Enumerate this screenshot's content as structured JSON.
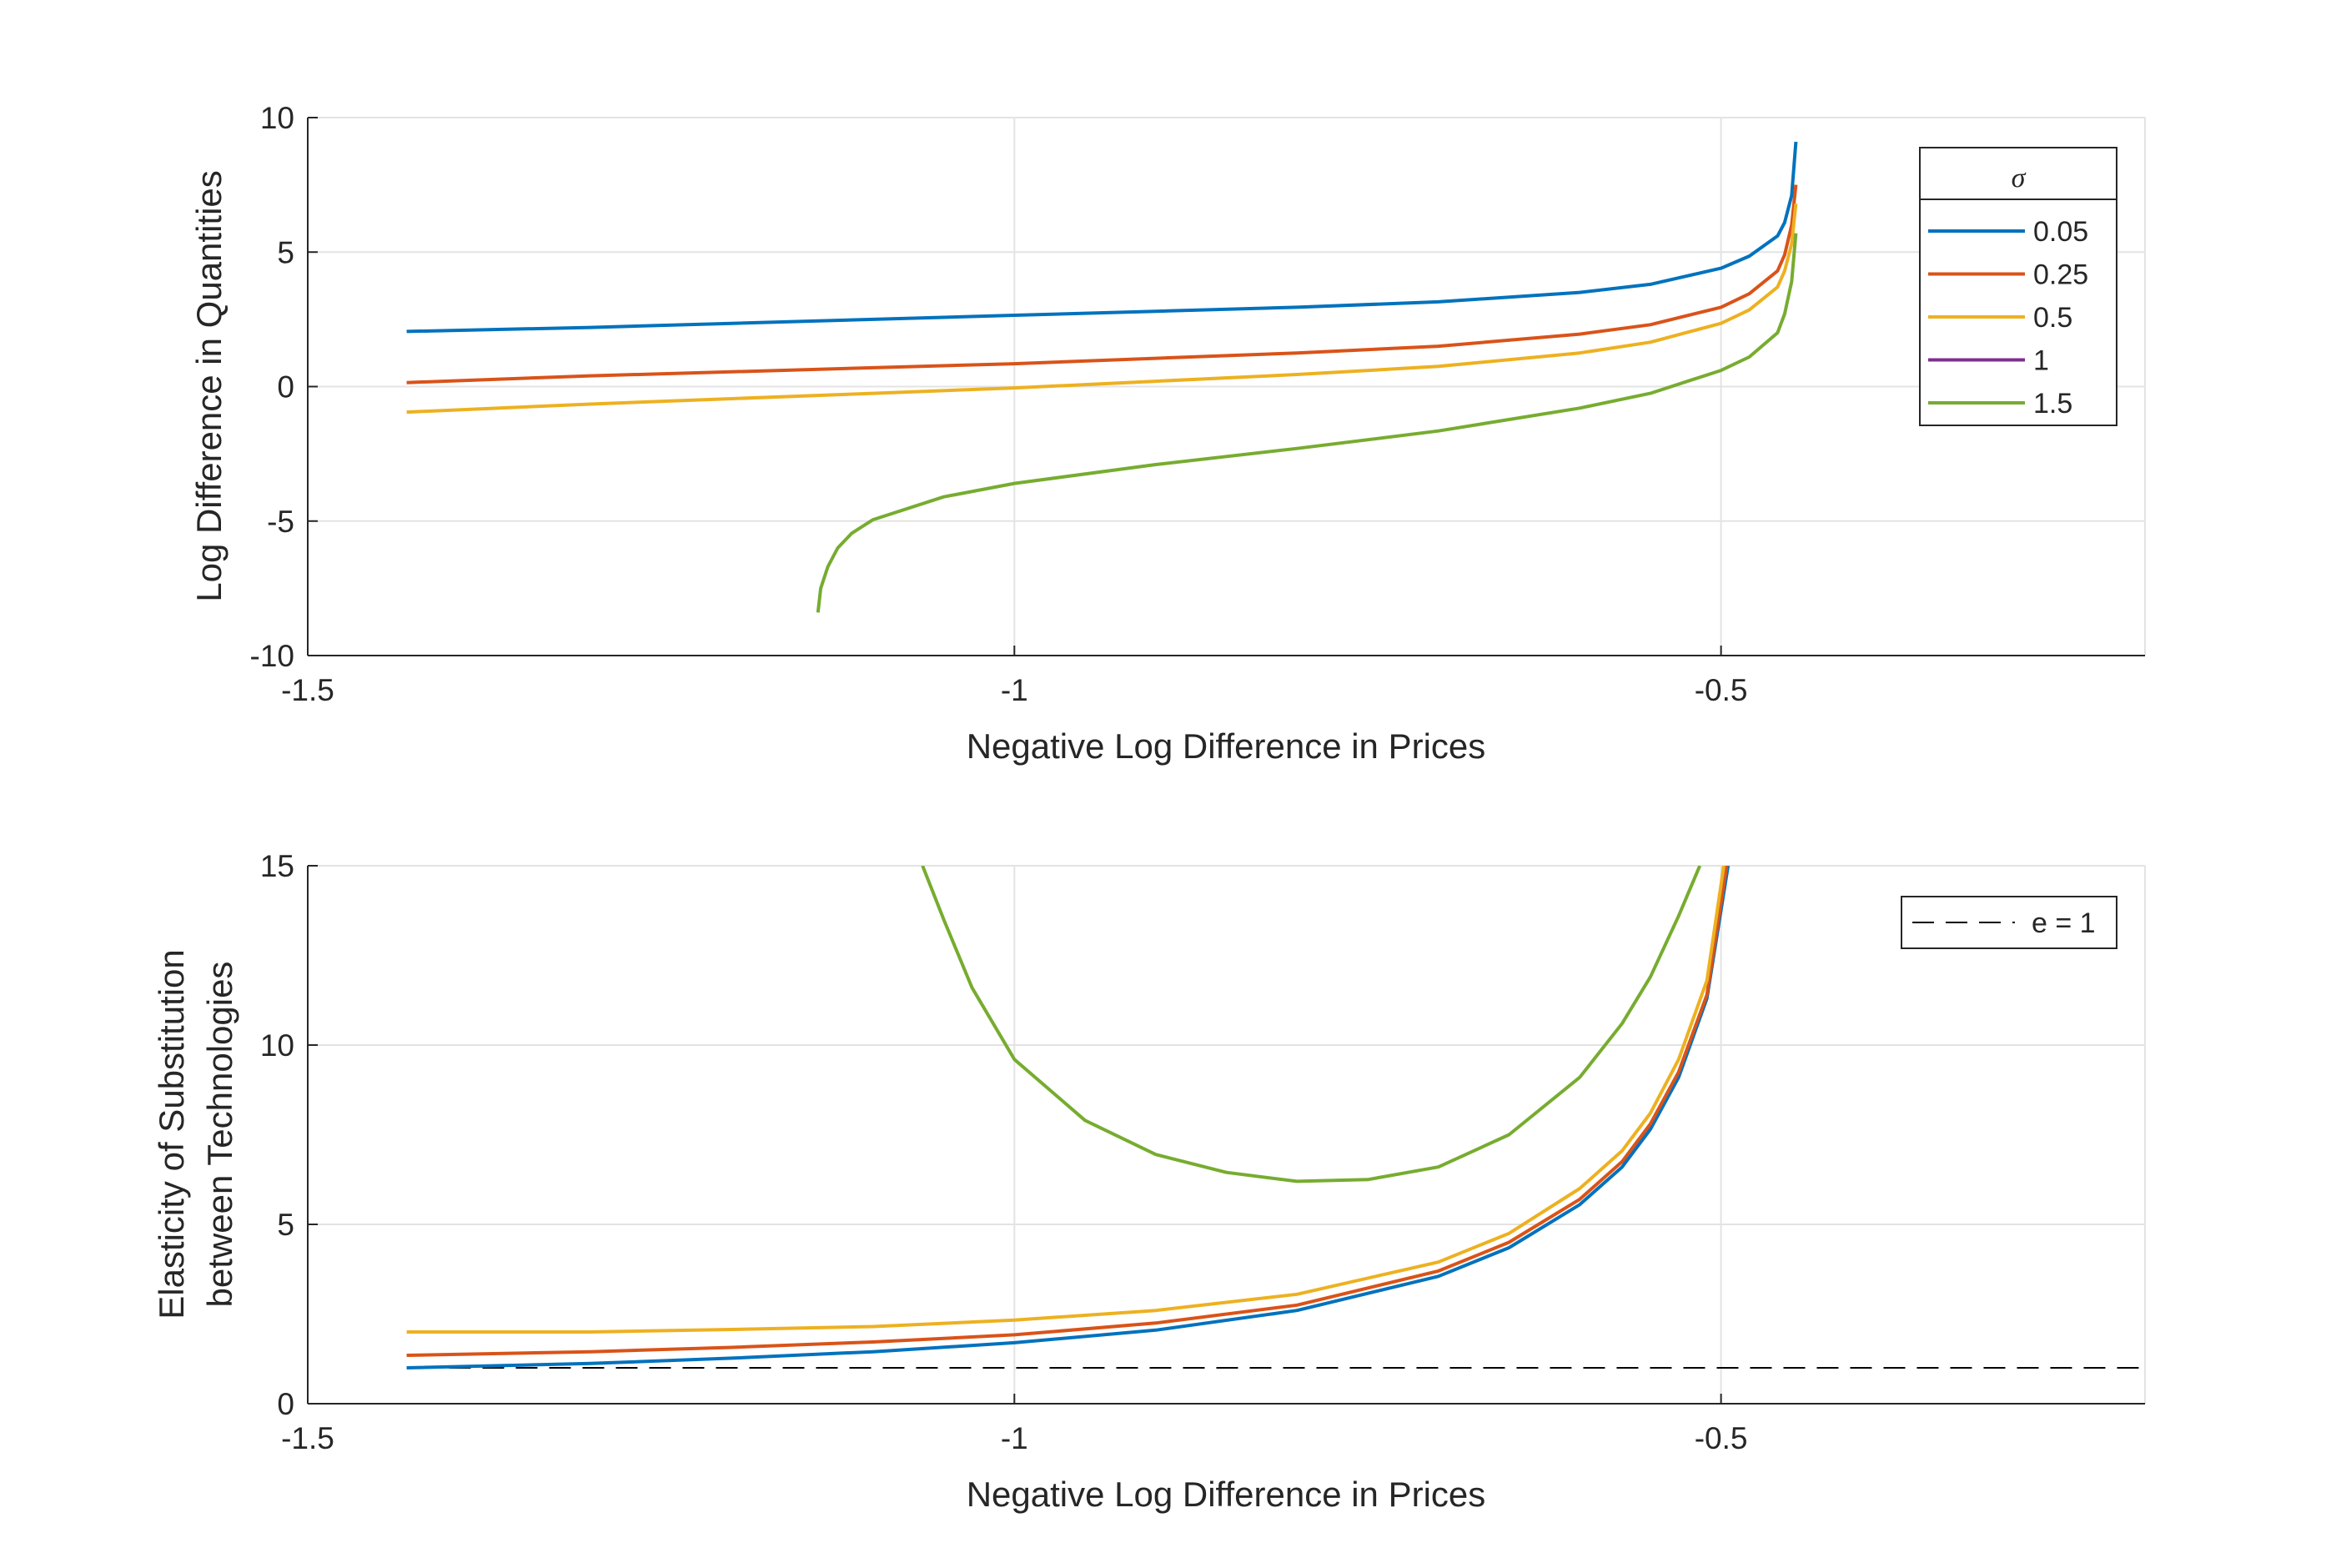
{
  "chart_data": [
    {
      "type": "line",
      "xlabel": "Negative Log Difference in Prices",
      "ylabel": "Log Difference in Quantities",
      "xlim": [
        -1.5,
        -0.2
      ],
      "ylim": [
        -10,
        10
      ],
      "xticks": [
        -1.5,
        -1,
        -0.5
      ],
      "xtick_labels": [
        "-1.5",
        "-1",
        "-0.5"
      ],
      "yticks": [
        -10,
        -5,
        0,
        5,
        10
      ],
      "ytick_labels": [
        "-10",
        "-5",
        "0",
        "5",
        "10"
      ],
      "grid": true,
      "legend": {
        "title": "σ",
        "position": "top-right"
      },
      "series": [
        {
          "name": "0.05",
          "color": "#0072BD",
          "x": [
            -1.43,
            -1.3,
            -1.2,
            -1.1,
            -1.0,
            -0.9,
            -0.8,
            -0.7,
            -0.6,
            -0.55,
            -0.5,
            -0.48,
            -0.46,
            -0.455,
            -0.45,
            -0.447
          ],
          "y": [
            2.05,
            2.2,
            2.35,
            2.5,
            2.65,
            2.8,
            2.95,
            3.15,
            3.5,
            3.8,
            4.4,
            4.85,
            5.6,
            6.1,
            7.1,
            9.1
          ]
        },
        {
          "name": "0.25",
          "color": "#D95319",
          "x": [
            -1.43,
            -1.3,
            -1.2,
            -1.1,
            -1.0,
            -0.9,
            -0.8,
            -0.7,
            -0.6,
            -0.55,
            -0.5,
            -0.48,
            -0.46,
            -0.455,
            -0.45,
            -0.447
          ],
          "y": [
            0.15,
            0.4,
            0.55,
            0.7,
            0.85,
            1.05,
            1.25,
            1.5,
            1.95,
            2.3,
            2.95,
            3.45,
            4.3,
            4.9,
            6.0,
            7.5
          ]
        },
        {
          "name": "0.5",
          "color": "#EDB120",
          "x": [
            -1.43,
            -1.3,
            -1.2,
            -1.1,
            -1.0,
            -0.9,
            -0.8,
            -0.7,
            -0.6,
            -0.55,
            -0.5,
            -0.48,
            -0.46,
            -0.455,
            -0.45,
            -0.447
          ],
          "y": [
            -0.95,
            -0.65,
            -0.45,
            -0.25,
            -0.05,
            0.2,
            0.45,
            0.75,
            1.25,
            1.65,
            2.35,
            2.85,
            3.7,
            4.3,
            5.3,
            6.8
          ]
        },
        {
          "name": "1",
          "color": "#7E2F8E",
          "x": [],
          "y": []
        },
        {
          "name": "1.5",
          "color": "#77AC30",
          "x": [
            -1.139,
            -1.137,
            -1.132,
            -1.125,
            -1.115,
            -1.1,
            -1.05,
            -1.0,
            -0.9,
            -0.8,
            -0.7,
            -0.6,
            -0.55,
            -0.5,
            -0.48,
            -0.46,
            -0.455,
            -0.45,
            -0.447
          ],
          "y": [
            -8.4,
            -7.5,
            -6.7,
            -6.0,
            -5.45,
            -4.95,
            -4.1,
            -3.6,
            -2.9,
            -2.3,
            -1.65,
            -0.8,
            -0.25,
            0.6,
            1.1,
            2.0,
            2.7,
            3.9,
            5.7
          ]
        }
      ]
    },
    {
      "type": "line",
      "xlabel": "Negative Log Difference in Prices",
      "ylabel_lines": [
        "Elasticity of Substitution",
        "between Technologies"
      ],
      "xlim": [
        -1.5,
        -0.2
      ],
      "ylim": [
        0,
        15
      ],
      "xticks": [
        -1.5,
        -1,
        -0.5
      ],
      "xtick_labels": [
        "-1.5",
        "-1",
        "-0.5"
      ],
      "yticks": [
        0,
        5,
        10,
        15
      ],
      "ytick_labels": [
        "0",
        "5",
        "10",
        "15"
      ],
      "grid": true,
      "legend": {
        "position": "top-right",
        "entries": [
          "e = 1"
        ]
      },
      "reference_line": {
        "name": "e = 1",
        "y": 1,
        "x": [
          -1.4,
          -0.2
        ],
        "color": "#000000",
        "style": "dashed"
      },
      "series": [
        {
          "name": "0.05",
          "color": "#0072BD",
          "x": [
            -1.43,
            -1.3,
            -1.2,
            -1.1,
            -1.0,
            -0.9,
            -0.8,
            -0.7,
            -0.65,
            -0.6,
            -0.57,
            -0.55,
            -0.53,
            -0.51,
            -0.495
          ],
          "y": [
            1.0,
            1.12,
            1.27,
            1.45,
            1.7,
            2.05,
            2.6,
            3.55,
            4.35,
            5.55,
            6.6,
            7.65,
            9.1,
            11.3,
            15.0
          ]
        },
        {
          "name": "0.25",
          "color": "#D95319",
          "x": [
            -1.43,
            -1.3,
            -1.2,
            -1.1,
            -1.0,
            -0.9,
            -0.8,
            -0.7,
            -0.65,
            -0.6,
            -0.57,
            -0.55,
            -0.53,
            -0.51,
            -0.496
          ],
          "y": [
            1.35,
            1.45,
            1.57,
            1.72,
            1.92,
            2.25,
            2.75,
            3.7,
            4.5,
            5.7,
            6.75,
            7.8,
            9.25,
            11.4,
            15.0
          ]
        },
        {
          "name": "0.5",
          "color": "#EDB120",
          "x": [
            -1.43,
            -1.3,
            -1.2,
            -1.1,
            -1.0,
            -0.9,
            -0.8,
            -0.7,
            -0.65,
            -0.6,
            -0.57,
            -0.55,
            -0.53,
            -0.51,
            -0.498
          ],
          "y": [
            2.0,
            2.0,
            2.07,
            2.15,
            2.33,
            2.6,
            3.05,
            3.95,
            4.75,
            6.0,
            7.05,
            8.1,
            9.6,
            11.8,
            15.0
          ]
        },
        {
          "name": "1",
          "color": "#7E2F8E",
          "x": [],
          "y": []
        },
        {
          "name": "1.5",
          "color": "#77AC30",
          "x": [
            -1.065,
            -1.05,
            -1.03,
            -1.0,
            -0.95,
            -0.9,
            -0.85,
            -0.8,
            -0.75,
            -0.7,
            -0.65,
            -0.6,
            -0.57,
            -0.55,
            -0.53,
            -0.515
          ],
          "y": [
            15.0,
            13.5,
            11.6,
            9.6,
            7.9,
            6.95,
            6.45,
            6.2,
            6.25,
            6.6,
            7.5,
            9.1,
            10.6,
            11.9,
            13.6,
            15.0
          ]
        }
      ]
    }
  ]
}
